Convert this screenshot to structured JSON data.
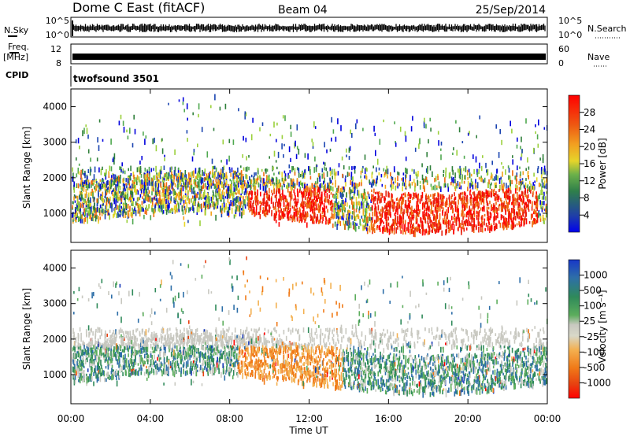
{
  "header": {
    "station": "Dome C East (fitACF)",
    "beam": "Beam 04",
    "date": "25/Sep/2014"
  },
  "noise_panel": {
    "left_label": "N.Sky",
    "right_label": "N.Search",
    "tick_top": "10^5",
    "tick_bottom": "10^0"
  },
  "freq_panel": {
    "left_label_1": "Freq.",
    "left_label_2": "[MHz]",
    "right_label": "Nave",
    "left_ticks": [
      "12",
      "8"
    ],
    "right_ticks": [
      "60",
      "0"
    ]
  },
  "cpid": {
    "label": "CPID",
    "program": "twofsound 3501"
  },
  "power_panel": {
    "ylabel": "Slant Range [km]",
    "yticks": [
      "4000",
      "3000",
      "2000",
      "1000"
    ],
    "colorbar_label": "Power [dB]",
    "colorbar_ticks": [
      "28",
      "24",
      "20",
      "16",
      "12",
      "8",
      "4"
    ],
    "colors": [
      "#0000dd",
      "#1a44b0",
      "#2f7f3a",
      "#4fa84f",
      "#9ad03a",
      "#e8d82a",
      "#f3a21c",
      "#ef6a10",
      "#e8200c",
      "#ff0000"
    ]
  },
  "velocity_panel": {
    "ylabel": "Slant Range [km]",
    "yticks": [
      "4000",
      "3000",
      "2000",
      "1000"
    ],
    "colorbar_label": "Velocity [m s⁻¹]",
    "colorbar_ticks": [
      "1000",
      "500",
      "100",
      "25",
      "-25",
      "-100",
      "-500",
      "-1000"
    ],
    "colors": [
      "#1838b8",
      "#2e6fa8",
      "#2f8a5a",
      "#5cad5c",
      "#c8c8c0",
      "#f3b050",
      "#f07a18",
      "#e84010",
      "#ff0000"
    ]
  },
  "xaxis": {
    "label": "Time UT",
    "ticks": [
      "00:00",
      "04:00",
      "08:00",
      "12:00",
      "16:00",
      "20:00",
      "00:00"
    ]
  }
}
